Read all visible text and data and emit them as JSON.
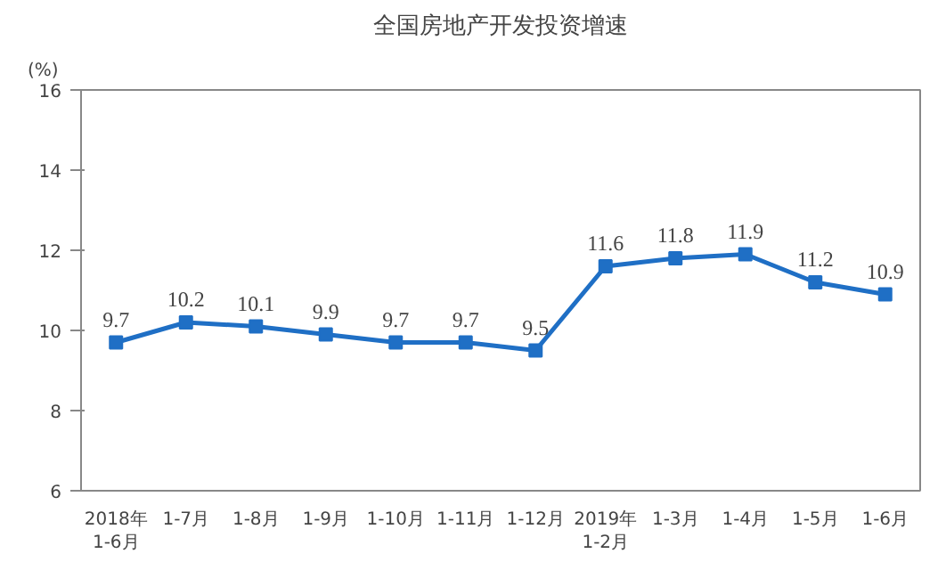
{
  "chart_data": {
    "type": "line",
    "title": "全国房地产开发投资增速",
    "ylabel": "(%)",
    "categories": [
      "2018年\n1-6月",
      "1-7月",
      "1-8月",
      "1-9月",
      "1-10月",
      "1-11月",
      "1-12月",
      "2019年\n1-2月",
      "1-3月",
      "1-4月",
      "1-5月",
      "1-6月"
    ],
    "series": [
      {
        "color": "#1f6fc5",
        "values": [
          9.7,
          10.2,
          10.1,
          9.9,
          9.7,
          9.7,
          9.5,
          11.6,
          11.8,
          11.9,
          11.2,
          10.9
        ]
      }
    ],
    "ylim": [
      6,
      16
    ],
    "yticks": [
      6,
      8,
      10,
      12,
      14,
      16
    ],
    "marker": "square",
    "line_style": "solid",
    "data_labels": true,
    "grid": false
  }
}
